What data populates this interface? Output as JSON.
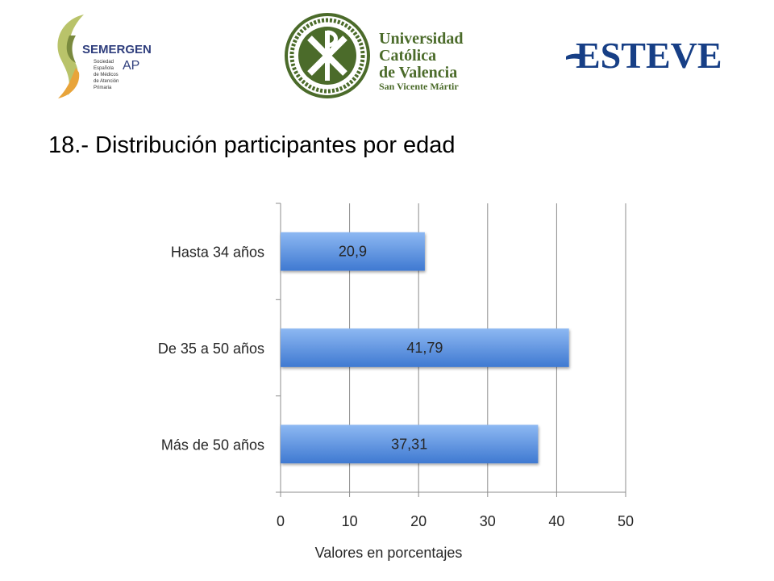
{
  "logos": {
    "semergen": {
      "name": "SEMERGEN",
      "sub": "AP",
      "tagline": [
        "Sociedad",
        "Española",
        "de Médicos",
        "de Atención",
        "Primaria"
      ]
    },
    "ucv": {
      "line1": "Universidad",
      "line2": "Católica",
      "line3": "de Valencia",
      "line4": "San Vicente Mártir"
    },
    "esteve": {
      "name": "ESTEVE"
    }
  },
  "slide": {
    "title": "18.- Distribución participantes por edad"
  },
  "colors": {
    "bar_top": "#8db8f2",
    "bar_bottom": "#3f79d1",
    "grid": "#8c8c8c",
    "logo_green": "#4b6b2a",
    "semergen_text": "#2f3e7d",
    "esteve_blue": "#173f86",
    "text": "#262626"
  },
  "chart_data": {
    "type": "bar",
    "orientation": "horizontal",
    "categories": [
      "Hasta 34 años",
      "De 35 a 50 años",
      "Más de 50 años"
    ],
    "values": [
      20.9,
      41.79,
      37.31
    ],
    "value_labels": [
      "20,9",
      "41,79",
      "37,31"
    ],
    "xlim": [
      0,
      50
    ],
    "xticks": [
      0,
      10,
      20,
      30,
      40,
      50
    ],
    "xlabel": "Valores en porcentajes",
    "ylabel": "",
    "grid": true,
    "legend": "none"
  }
}
